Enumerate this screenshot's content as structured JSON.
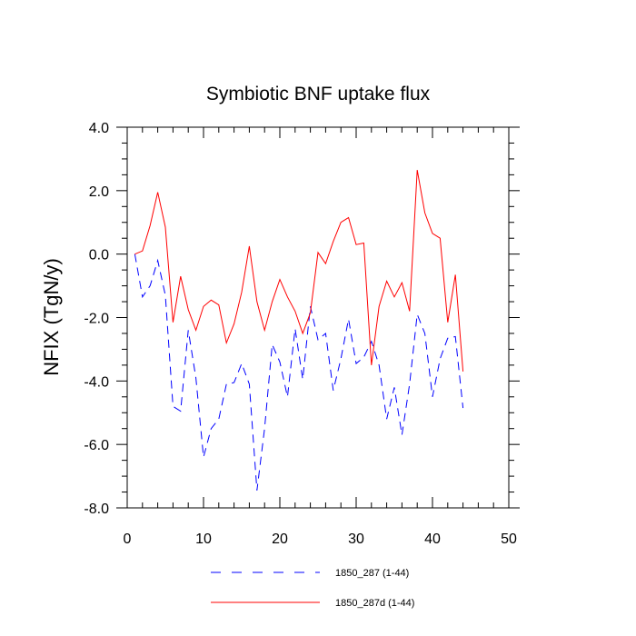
{
  "chart_data": {
    "type": "line",
    "title": "Symbiotic BNF uptake flux",
    "xlabel": "",
    "ylabel": "NFIX  (TgN/y)",
    "xlim": [
      0,
      50
    ],
    "ylim": [
      -8.0,
      4.0
    ],
    "x_ticks": [
      0,
      10,
      20,
      30,
      40,
      50
    ],
    "y_ticks": [
      -8.0,
      -6.0,
      -4.0,
      -2.0,
      0.0,
      2.0,
      4.0
    ],
    "x_tick_labels": [
      "0",
      "10",
      "20",
      "30",
      "40",
      "50"
    ],
    "y_tick_labels": [
      "-8.0",
      "-6.0",
      "-4.0",
      "-2.0",
      "0.0",
      "2.0",
      "4.0"
    ],
    "grid": false,
    "legend_position": "bottom",
    "x": [
      1,
      2,
      3,
      4,
      5,
      6,
      7,
      8,
      9,
      10,
      11,
      12,
      13,
      14,
      15,
      16,
      17,
      18,
      19,
      20,
      21,
      22,
      23,
      24,
      25,
      26,
      27,
      28,
      29,
      30,
      31,
      32,
      33,
      34,
      35,
      36,
      37,
      38,
      39,
      40,
      41,
      42,
      43,
      44
    ],
    "series": [
      {
        "name": "1850_287 (1-44)",
        "color": "#0000ff",
        "dash": "dashed",
        "values": [
          0.0,
          -1.35,
          -1.0,
          -0.2,
          -1.3,
          -4.8,
          -4.95,
          -2.4,
          -3.9,
          -6.4,
          -5.5,
          -5.2,
          -4.1,
          -4.05,
          -3.45,
          -4.1,
          -7.45,
          -5.5,
          -2.85,
          -3.4,
          -4.5,
          -2.35,
          -3.95,
          -1.65,
          -2.7,
          -2.5,
          -4.3,
          -3.3,
          -2.05,
          -3.45,
          -3.25,
          -2.75,
          -3.5,
          -5.2,
          -4.2,
          -5.7,
          -4.1,
          -1.9,
          -2.5,
          -4.5,
          -3.3,
          -2.65,
          -2.6,
          -4.85
        ]
      },
      {
        "name": "1850_287d (1-44)",
        "color": "#ff0000",
        "dash": "solid",
        "values": [
          0.0,
          0.1,
          0.9,
          1.95,
          0.85,
          -2.15,
          -0.7,
          -1.75,
          -2.4,
          -1.65,
          -1.45,
          -1.6,
          -2.8,
          -2.2,
          -1.2,
          0.25,
          -1.5,
          -2.4,
          -1.5,
          -0.8,
          -1.35,
          -1.8,
          -2.5,
          -1.85,
          0.05,
          -0.3,
          0.4,
          1.0,
          1.15,
          0.3,
          0.35,
          -3.5,
          -1.65,
          -0.85,
          -1.35,
          -0.9,
          -1.8,
          2.65,
          1.3,
          0.65,
          0.5,
          -2.15,
          -0.65,
          -3.7
        ]
      }
    ]
  }
}
